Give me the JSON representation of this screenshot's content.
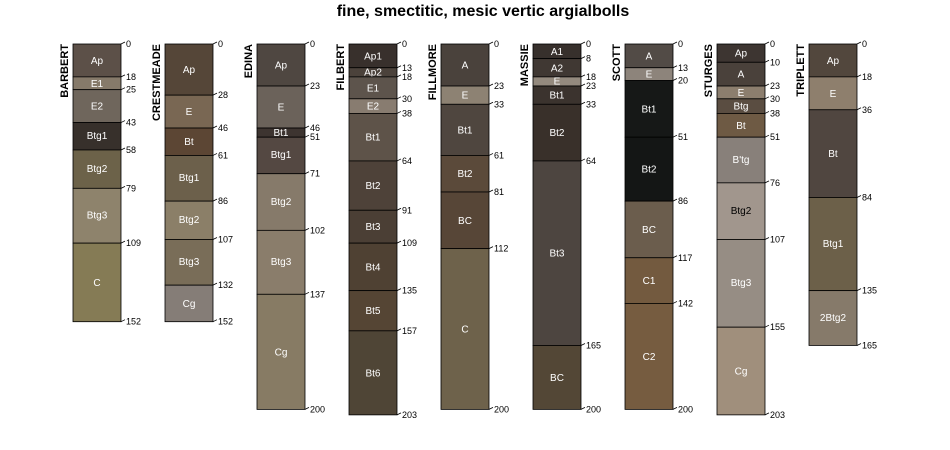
{
  "chart_data": {
    "type": "soil-profile-sketch",
    "title": "fine, smectitic, mesic vertic argialbolls",
    "depth_unit": "cm",
    "max_depth": 203,
    "profiles": [
      {
        "name": "BARBERT",
        "horizons": [
          {
            "name": "Ap",
            "top": 0,
            "bottom": 18,
            "color": "#5c5048"
          },
          {
            "name": "E1",
            "top": 18,
            "bottom": 25,
            "color": "#867a6a"
          },
          {
            "name": "E2",
            "top": 25,
            "bottom": 43,
            "color": "#6f665c"
          },
          {
            "name": "Btg1",
            "top": 43,
            "bottom": 58,
            "color": "#37302b"
          },
          {
            "name": "Btg2",
            "top": 58,
            "bottom": 79,
            "color": "#6c6249"
          },
          {
            "name": "Btg3",
            "top": 79,
            "bottom": 109,
            "color": "#8e836c"
          },
          {
            "name": "C",
            "top": 109,
            "bottom": 152,
            "color": "#857b55"
          }
        ]
      },
      {
        "name": "CRESTMEADE",
        "horizons": [
          {
            "name": "Ap",
            "top": 0,
            "bottom": 28,
            "color": "#554638"
          },
          {
            "name": "E",
            "top": 28,
            "bottom": 46,
            "color": "#796753"
          },
          {
            "name": "Bt",
            "top": 46,
            "bottom": 61,
            "color": "#5c4634"
          },
          {
            "name": "Btg1",
            "top": 61,
            "bottom": 86,
            "color": "#6c604b"
          },
          {
            "name": "Btg2",
            "top": 86,
            "bottom": 107,
            "color": "#8b7f68"
          },
          {
            "name": "Btg3",
            "top": 107,
            "bottom": 132,
            "color": "#796d58"
          },
          {
            "name": "Cg",
            "top": 132,
            "bottom": 152,
            "color": "#857d77"
          }
        ]
      },
      {
        "name": "EDINA",
        "horizons": [
          {
            "name": "Ap",
            "top": 0,
            "bottom": 23,
            "color": "#4f4741"
          },
          {
            "name": "E",
            "top": 23,
            "bottom": 46,
            "color": "#6b625a"
          },
          {
            "name": "Bt1",
            "top": 46,
            "bottom": 51,
            "color": "#3d3430"
          },
          {
            "name": "Btg1",
            "top": 51,
            "bottom": 71,
            "color": "#544842"
          },
          {
            "name": "Btg2",
            "top": 71,
            "bottom": 102,
            "color": "#867a6a"
          },
          {
            "name": "Btg3",
            "top": 102,
            "bottom": 137,
            "color": "#8a7d6b"
          },
          {
            "name": "Cg",
            "top": 137,
            "bottom": 200,
            "color": "#877b64"
          }
        ]
      },
      {
        "name": "FILBERT",
        "horizons": [
          {
            "name": "Ap1",
            "top": 0,
            "bottom": 13,
            "color": "#38302c"
          },
          {
            "name": "Ap2",
            "top": 13,
            "bottom": 18,
            "color": "#4b423b"
          },
          {
            "name": "E1",
            "top": 18,
            "bottom": 30,
            "color": "#5d544c"
          },
          {
            "name": "E2",
            "top": 30,
            "bottom": 38,
            "color": "#887c70"
          },
          {
            "name": "Bt1",
            "top": 38,
            "bottom": 64,
            "color": "#5e5349"
          },
          {
            "name": "Bt2",
            "top": 64,
            "bottom": 91,
            "color": "#4e4239"
          },
          {
            "name": "Bt3",
            "top": 91,
            "bottom": 109,
            "color": "#4b3f35"
          },
          {
            "name": "Bt4",
            "top": 109,
            "bottom": 135,
            "color": "#4f4133"
          },
          {
            "name": "Bt5",
            "top": 135,
            "bottom": 157,
            "color": "#554534"
          },
          {
            "name": "Bt6",
            "top": 157,
            "bottom": 203,
            "color": "#4f4536"
          }
        ]
      },
      {
        "name": "FILLMORE",
        "horizons": [
          {
            "name": "A",
            "top": 0,
            "bottom": 23,
            "color": "#4a423c"
          },
          {
            "name": "E",
            "top": 23,
            "bottom": 33,
            "color": "#8d8273"
          },
          {
            "name": "Bt1",
            "top": 33,
            "bottom": 61,
            "color": "#4f463f"
          },
          {
            "name": "Bt2",
            "top": 61,
            "bottom": 81,
            "color": "#5b4a3a"
          },
          {
            "name": "BC",
            "top": 81,
            "bottom": 112,
            "color": "#574637"
          },
          {
            "name": "C",
            "top": 112,
            "bottom": 200,
            "color": "#6e624b"
          }
        ]
      },
      {
        "name": "MASSIE",
        "horizons": [
          {
            "name": "A1",
            "top": 0,
            "bottom": 8,
            "color": "#37302c"
          },
          {
            "name": "A2",
            "top": 8,
            "bottom": 18,
            "color": "#403833"
          },
          {
            "name": "E",
            "top": 18,
            "bottom": 23,
            "color": "#948a7e"
          },
          {
            "name": "Bt1",
            "top": 23,
            "bottom": 33,
            "color": "#3b332e"
          },
          {
            "name": "Bt2",
            "top": 33,
            "bottom": 64,
            "color": "#39302a"
          },
          {
            "name": "Bt3",
            "top": 64,
            "bottom": 165,
            "color": "#4d4540"
          },
          {
            "name": "BC",
            "top": 165,
            "bottom": 200,
            "color": "#534736"
          }
        ]
      },
      {
        "name": "SCOTT",
        "horizons": [
          {
            "name": "A",
            "top": 0,
            "bottom": 13,
            "color": "#524b46"
          },
          {
            "name": "E",
            "top": 13,
            "bottom": 20,
            "color": "#8d847b"
          },
          {
            "name": "Bt1",
            "top": 20,
            "bottom": 51,
            "color": "#161817"
          },
          {
            "name": "Bt2",
            "top": 51,
            "bottom": 86,
            "color": "#141615"
          },
          {
            "name": "BC",
            "top": 86,
            "bottom": 117,
            "color": "#6b5d4d"
          },
          {
            "name": "C1",
            "top": 117,
            "bottom": 142,
            "color": "#735a3f"
          },
          {
            "name": "C2",
            "top": 142,
            "bottom": 200,
            "color": "#765c40"
          }
        ]
      },
      {
        "name": "STURGES",
        "horizons": [
          {
            "name": "Ap",
            "top": 0,
            "bottom": 10,
            "color": "#3d3531"
          },
          {
            "name": "A",
            "top": 10,
            "bottom": 23,
            "color": "#4a413b"
          },
          {
            "name": "E",
            "top": 23,
            "bottom": 30,
            "color": "#8c7e6e"
          },
          {
            "name": "Btg",
            "top": 30,
            "bottom": 38,
            "color": "#5a4d41"
          },
          {
            "name": "Bt",
            "top": 38,
            "bottom": 51,
            "color": "#6e5a44"
          },
          {
            "name": "B'tg",
            "top": 51,
            "bottom": 76,
            "color": "#88807a"
          },
          {
            "name": "Btg2",
            "top": 76,
            "bottom": 107,
            "color": "#a1968d"
          },
          {
            "name": "Btg3",
            "top": 107,
            "bottom": 155,
            "color": "#968d84"
          },
          {
            "name": "Cg",
            "top": 155,
            "bottom": 203,
            "color": "#a08f7c"
          }
        ]
      },
      {
        "name": "TRIPLETT",
        "horizons": [
          {
            "name": "Ap",
            "top": 0,
            "bottom": 18,
            "color": "#52473d"
          },
          {
            "name": "E",
            "top": 18,
            "bottom": 36,
            "color": "#8e7f6d"
          },
          {
            "name": "Bt",
            "top": 36,
            "bottom": 84,
            "color": "#504640"
          },
          {
            "name": "Btg1",
            "top": 84,
            "bottom": 135,
            "color": "#6c6049"
          },
          {
            "name": "2Btg2",
            "top": 135,
            "bottom": 165,
            "color": "#867a6a"
          }
        ]
      }
    ]
  }
}
